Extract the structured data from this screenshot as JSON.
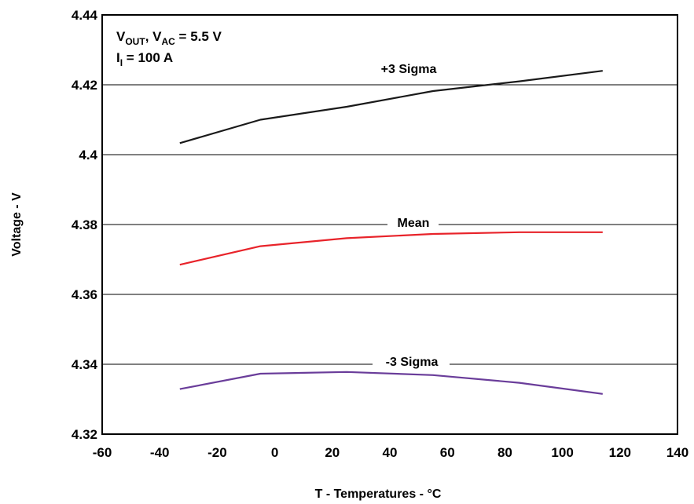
{
  "chart_data": {
    "type": "line",
    "xlabel": "T - Temperatures - °C",
    "ylabel": "Voltage - V",
    "xlim": [
      -60,
      140
    ],
    "ylim": [
      4.32,
      4.44
    ],
    "x_ticks": [
      "-60",
      "-40",
      "-20",
      "0",
      "20",
      "40",
      "60",
      "80",
      "100",
      "120",
      "140"
    ],
    "y_ticks": [
      "4.32",
      "4.34",
      "4.36",
      "4.38",
      "4.4",
      "4.42",
      "4.44"
    ],
    "grid": "horizontal",
    "annotations": {
      "line1_a": "V",
      "line1_a_sub": "OUT",
      "line1_b": ", V",
      "line1_b_sub": "AC",
      "line1_c": " = 5.5 V",
      "line2_a": "I",
      "line2_a_sub": "I",
      "line2_b": " = 100 A"
    },
    "series": [
      {
        "name": "+3 Sigma",
        "color": "#1a1a1a",
        "x": [
          -33,
          -5,
          25,
          55,
          85,
          114
        ],
        "y": [
          4.4033,
          4.41,
          4.4137,
          4.4182,
          4.421,
          4.424
        ]
      },
      {
        "name": "Mean",
        "color": "#e8232a",
        "x": [
          -33,
          -5,
          25,
          55,
          85,
          114
        ],
        "y": [
          4.3685,
          4.3738,
          4.3761,
          4.3773,
          4.3778,
          4.3778
        ]
      },
      {
        "name": "-3 Sigma",
        "color": "#6a3d9a",
        "x": [
          -33,
          -5,
          25,
          55,
          85,
          114
        ],
        "y": [
          4.3329,
          4.3373,
          4.3378,
          4.3369,
          4.3347,
          4.3315
        ]
      }
    ]
  }
}
